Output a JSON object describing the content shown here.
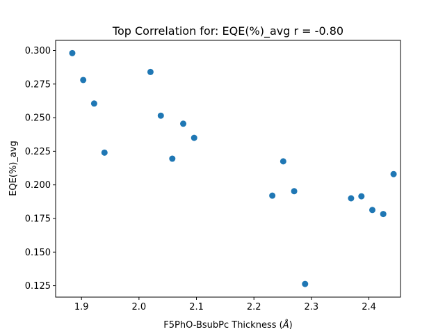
{
  "chart_data": {
    "type": "scatter",
    "title": "Top Correlation for: EQE(%)_avg r = -0.80",
    "xlabel": "F5PhO-BsubPc Thickness (",
    "xlabel_unit": "Å",
    "xlabel_close": ")",
    "ylabel": "EQE(%)_avg",
    "xlim": [
      1.855,
      2.455
    ],
    "ylim": [
      0.1165,
      0.3075
    ],
    "xticks": [
      1.9,
      2.0,
      2.1,
      2.2,
      2.3,
      2.4
    ],
    "xtick_labels": [
      "1.9",
      "2.0",
      "2.1",
      "2.2",
      "2.3",
      "2.4"
    ],
    "yticks": [
      0.125,
      0.15,
      0.175,
      0.2,
      0.225,
      0.25,
      0.275,
      0.3
    ],
    "ytick_labels": [
      "0.125",
      "0.150",
      "0.175",
      "0.200",
      "0.225",
      "0.250",
      "0.275",
      "0.300"
    ],
    "grid": false,
    "color": "#1f77b4",
    "points": [
      {
        "x": 1.884,
        "y": 0.298
      },
      {
        "x": 1.903,
        "y": 0.278
      },
      {
        "x": 1.922,
        "y": 0.2605
      },
      {
        "x": 1.94,
        "y": 0.224
      },
      {
        "x": 2.02,
        "y": 0.284
      },
      {
        "x": 2.038,
        "y": 0.2515
      },
      {
        "x": 2.058,
        "y": 0.2195
      },
      {
        "x": 2.077,
        "y": 0.2455
      },
      {
        "x": 2.096,
        "y": 0.235
      },
      {
        "x": 2.232,
        "y": 0.192
      },
      {
        "x": 2.251,
        "y": 0.2175
      },
      {
        "x": 2.27,
        "y": 0.1953
      },
      {
        "x": 2.289,
        "y": 0.1263
      },
      {
        "x": 2.369,
        "y": 0.19
      },
      {
        "x": 2.387,
        "y": 0.1915
      },
      {
        "x": 2.406,
        "y": 0.1813
      },
      {
        "x": 2.425,
        "y": 0.1783
      },
      {
        "x": 2.443,
        "y": 0.208
      }
    ]
  }
}
